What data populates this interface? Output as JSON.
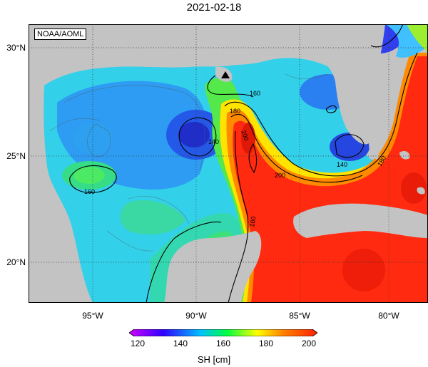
{
  "title": "2021-02-18",
  "credit": "NOAA/AOML",
  "lat_labels": [
    "30°N",
    "25°N",
    "20°N"
  ],
  "lon_labels": [
    "95°W",
    "90°W",
    "85°W",
    "80°W"
  ],
  "colorbar": {
    "ticks": [
      "120",
      "140",
      "160",
      "180",
      "200"
    ],
    "title": "SH [cm]",
    "colors": [
      "#d000ff",
      "#3000ff",
      "#00c0ff",
      "#00ff40",
      "#ffff00",
      "#ff8000",
      "#ff2000"
    ]
  },
  "contour_labels": [
    "160",
    "160",
    "140",
    "180",
    "200",
    "200",
    "160",
    "180",
    "140",
    "140",
    "160",
    "160",
    "200"
  ],
  "colors": {
    "land": "#c0c0c0",
    "ocean_blue": "#2f8cff",
    "ocean_cyan": "#2fd8e8",
    "ocean_green": "#36e07a",
    "loop_red": "#ff2a10"
  }
}
